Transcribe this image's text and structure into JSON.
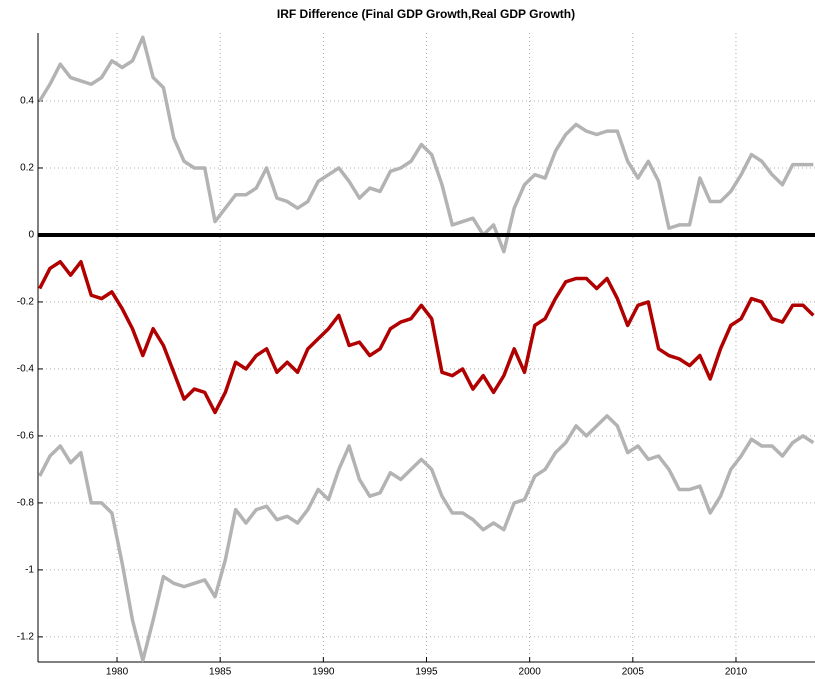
{
  "chart_data": {
    "type": "line",
    "title": "IRF Difference (Final GDP Growth,Real GDP Growth)",
    "x": [
      1976.25,
      1976.75,
      1977.25,
      1977.75,
      1978.25,
      1978.75,
      1979.25,
      1979.75,
      1980.25,
      1980.75,
      1981.25,
      1981.75,
      1982.25,
      1982.75,
      1983.25,
      1983.75,
      1984.25,
      1984.75,
      1985.25,
      1985.75,
      1986.25,
      1986.75,
      1987.25,
      1987.75,
      1988.25,
      1988.75,
      1989.25,
      1989.75,
      1990.25,
      1990.75,
      1991.25,
      1991.75,
      1992.25,
      1992.75,
      1993.25,
      1993.75,
      1994.25,
      1994.75,
      1995.25,
      1995.75,
      1996.25,
      1996.75,
      1997.25,
      1997.75,
      1998.25,
      1998.75,
      1999.25,
      1999.75,
      2000.25,
      2000.75,
      2001.25,
      2001.75,
      2002.25,
      2002.75,
      2003.25,
      2003.75,
      2004.25,
      2004.75,
      2005.25,
      2005.75,
      2006.25,
      2006.75,
      2007.25,
      2007.75,
      2008.25,
      2008.75,
      2009.25,
      2009.75,
      2010.25,
      2010.75,
      2011.25,
      2011.75,
      2012.25,
      2012.75,
      2013.25,
      2013.75
    ],
    "series": [
      {
        "color": "#b3b3b3",
        "values": [
          0.4,
          0.45,
          0.51,
          0.47,
          0.46,
          0.45,
          0.47,
          0.52,
          0.5,
          0.52,
          0.59,
          0.47,
          0.44,
          0.29,
          0.22,
          0.2,
          0.2,
          0.04,
          0.08,
          0.12,
          0.12,
          0.14,
          0.2,
          0.11,
          0.1,
          0.08,
          0.1,
          0.16,
          0.18,
          0.2,
          0.16,
          0.11,
          0.14,
          0.13,
          0.19,
          0.2,
          0.22,
          0.27,
          0.24,
          0.15,
          0.03,
          0.04,
          0.05,
          0,
          0.03,
          -0.05,
          0.08,
          0.15,
          0.18,
          0.17,
          0.25,
          0.3,
          0.33,
          0.31,
          0.3,
          0.31,
          0.31,
          0.22,
          0.17,
          0.22,
          0.16,
          0.02,
          0.03,
          0.03,
          0.17,
          0.1,
          0.1,
          0.13,
          0.18,
          0.24,
          0.22,
          0.18,
          0.15,
          0.21,
          0.21,
          0.21
        ]
      },
      {
        "color": "#b00000",
        "values": [
          -0.16,
          -0.1,
          -0.08,
          -0.12,
          -0.08,
          -0.18,
          -0.19,
          -0.17,
          -0.22,
          -0.28,
          -0.36,
          -0.28,
          -0.33,
          -0.41,
          -0.49,
          -0.46,
          -0.47,
          -0.53,
          -0.47,
          -0.38,
          -0.4,
          -0.36,
          -0.34,
          -0.41,
          -0.38,
          -0.41,
          -0.34,
          -0.31,
          -0.28,
          -0.24,
          -0.33,
          -0.32,
          -0.36,
          -0.34,
          -0.28,
          -0.26,
          -0.25,
          -0.21,
          -0.25,
          -0.41,
          -0.42,
          -0.4,
          -0.46,
          -0.42,
          -0.47,
          -0.42,
          -0.34,
          -0.41,
          -0.27,
          -0.25,
          -0.19,
          -0.14,
          -0.13,
          -0.13,
          -0.16,
          -0.13,
          -0.19,
          -0.27,
          -0.21,
          -0.2,
          -0.34,
          -0.36,
          -0.37,
          -0.39,
          -0.36,
          -0.43,
          -0.34,
          -0.27,
          -0.25,
          -0.19,
          -0.2,
          -0.25,
          -0.26,
          -0.21,
          -0.21,
          -0.24
        ]
      },
      {
        "color": "#b3b3b3",
        "values": [
          -0.72,
          -0.66,
          -0.63,
          -0.68,
          -0.65,
          -0.8,
          -0.8,
          -0.83,
          -0.98,
          -1.15,
          -1.27,
          -1.15,
          -1.02,
          -1.04,
          -1.05,
          -1.04,
          -1.03,
          -1.08,
          -0.97,
          -0.82,
          -0.86,
          -0.82,
          -0.81,
          -0.85,
          -0.84,
          -0.86,
          -0.82,
          -0.76,
          -0.79,
          -0.7,
          -0.63,
          -0.73,
          -0.78,
          -0.77,
          -0.71,
          -0.73,
          -0.7,
          -0.67,
          -0.7,
          -0.78,
          -0.83,
          -0.83,
          -0.85,
          -0.88,
          -0.86,
          -0.88,
          -0.8,
          -0.79,
          -0.72,
          -0.7,
          -0.65,
          -0.62,
          -0.57,
          -0.6,
          -0.57,
          -0.54,
          -0.57,
          -0.65,
          -0.63,
          -0.67,
          -0.66,
          -0.7,
          -0.76,
          -0.76,
          -0.75,
          -0.83,
          -0.78,
          -0.7,
          -0.66,
          -0.61,
          -0.63,
          -0.63,
          -0.66,
          -0.62,
          -0.6,
          -0.62
        ]
      }
    ],
    "reference_line": {
      "value": 0,
      "color": "#000000"
    },
    "xlim": [
      1976.17,
      2013.83
    ],
    "xticks": [
      1980,
      1985,
      1990,
      1995,
      2000,
      2005,
      2010
    ],
    "ylim": [
      -1.275,
      0.603
    ],
    "yticks": [
      -1.2,
      -1,
      -0.8,
      -0.6,
      -0.4,
      -0.2,
      0,
      0.2,
      0.4
    ],
    "grid": true
  }
}
